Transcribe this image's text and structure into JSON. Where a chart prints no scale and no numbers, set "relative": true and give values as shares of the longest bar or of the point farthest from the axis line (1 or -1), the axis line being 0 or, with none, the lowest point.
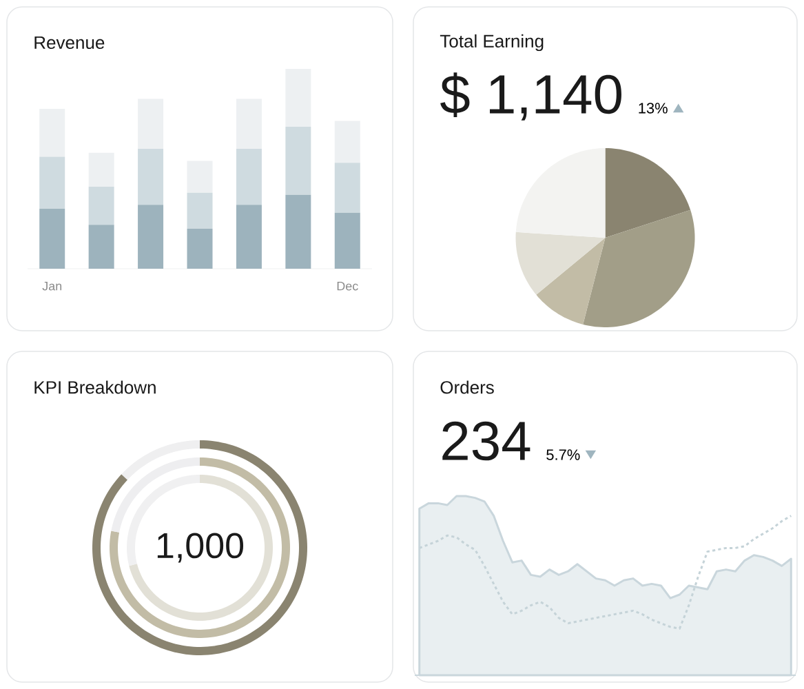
{
  "chart_data": [
    {
      "type": "bar",
      "title": "Revenue",
      "categories": [
        "Jan",
        null,
        null,
        null,
        null,
        null,
        "Dec"
      ],
      "stacked": true,
      "relative": true,
      "series": [
        {
          "color": "#9db3bd",
          "values": [
            0.3,
            0.22,
            0.32,
            0.2,
            0.32,
            0.37,
            0.28
          ]
        },
        {
          "color": "#cfdbe0",
          "values": [
            0.26,
            0.19,
            0.28,
            0.18,
            0.28,
            0.34,
            0.25
          ]
        },
        {
          "color": "#edf0f2",
          "values": [
            0.24,
            0.17,
            0.25,
            0.16,
            0.25,
            0.29,
            0.21
          ]
        }
      ]
    },
    {
      "type": "pie",
      "title": "Total Earning",
      "annotations": [
        "$ 1,140",
        "13%"
      ],
      "categories": [
        null,
        null,
        null,
        null,
        null
      ],
      "values": [
        20,
        34,
        10,
        12,
        24
      ],
      "colors": [
        "#8a8470",
        "#a29e88",
        "#c2bca6",
        "#e2e0d6",
        "#f3f3f1"
      ]
    },
    {
      "type": "donut",
      "title": "KPI Breakdown",
      "annotations": [
        "1,000"
      ],
      "categories": [
        null,
        null
      ],
      "series": [
        {
          "values": [
            71,
            29
          ],
          "colors": [
            "#e2e0d6",
            "#f0f0f1"
          ]
        },
        {
          "values": [
            78,
            22
          ],
          "colors": [
            "#c2bca6",
            "#eeeef0"
          ]
        },
        {
          "values": [
            87,
            13
          ],
          "colors": [
            "#8a8470",
            "#efeff0"
          ]
        }
      ]
    },
    {
      "type": "line",
      "title": "Orders",
      "relative": true,
      "annotations": [
        "234",
        "5.7%"
      ],
      "categories": [
        null,
        null,
        null,
        null,
        null,
        null,
        null,
        null,
        null,
        null,
        null,
        null,
        null,
        null,
        null,
        null,
        null,
        null,
        null,
        null,
        null,
        null,
        null,
        null,
        null,
        null,
        null,
        null,
        null,
        null,
        null,
        null,
        null,
        null,
        null,
        null,
        null,
        null,
        null,
        null,
        null
      ],
      "series": [
        {
          "type": "area",
          "color": "#c9d6dc",
          "values": [
            0.93,
            0.96,
            0.96,
            0.95,
            1,
            1,
            0.99,
            0.97,
            0.89,
            0.75,
            0.63,
            0.64,
            0.56,
            0.55,
            0.59,
            0.56,
            0.58,
            0.62,
            0.58,
            0.54,
            0.53,
            0.5,
            0.53,
            0.54,
            0.5,
            0.51,
            0.5,
            0.43,
            0.45,
            0.5,
            0.49,
            0.48,
            0.58,
            0.59,
            0.58,
            0.64,
            0.67,
            0.66,
            0.64,
            0.61,
            0.65
          ]
        },
        {
          "color": "#c5d3d8",
          "line_style": "dashed",
          "values": [
            0.71,
            0.73,
            0.75,
            0.78,
            0.77,
            0.73,
            0.7,
            0.61,
            0.51,
            0.41,
            0.34,
            0.36,
            0.39,
            0.41,
            0.38,
            0.32,
            0.29,
            0.3,
            0.31,
            0.32,
            0.33,
            0.34,
            0.35,
            0.36,
            0.34,
            0.31,
            0.29,
            0.27,
            0.26,
            0.39,
            0.55,
            0.69,
            0.7,
            0.71,
            0.71,
            0.72,
            0.76,
            0.79,
            0.82,
            0.86,
            0.89
          ]
        }
      ]
    }
  ]
}
